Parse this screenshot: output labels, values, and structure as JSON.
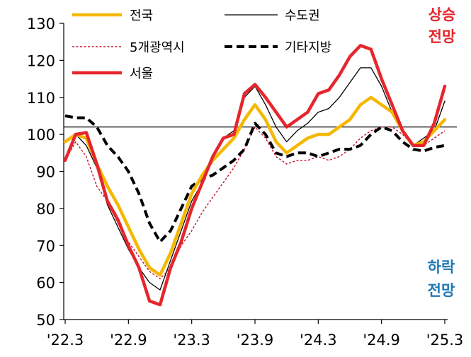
{
  "chart_data": {
    "type": "line",
    "title": "",
    "xlabel": "",
    "ylabel": "",
    "ylim": [
      50,
      130
    ],
    "yticks": [
      50,
      60,
      70,
      80,
      90,
      100,
      110,
      120,
      130
    ],
    "reference_line": 102,
    "x_tick_labels": [
      "'22.3",
      "'22.9",
      "'23.3",
      "'23.9",
      "'24.3",
      "'24.9",
      "'25.3"
    ],
    "x_tick_index": [
      0,
      6,
      12,
      18,
      24,
      30,
      36
    ],
    "n_points": 37,
    "annotations": {
      "upper": [
        "상승",
        "전망"
      ],
      "lower": [
        "하락",
        "전망"
      ]
    },
    "colors": {
      "upper": "#e5262c",
      "lower": "#1f78b4",
      "axis": "#000000"
    },
    "legend": [
      {
        "name": "전국",
        "series": 0
      },
      {
        "name": "수도권",
        "series": 1
      },
      {
        "name": "5개광역시",
        "series": 2
      },
      {
        "name": "기타지방",
        "series": 3
      },
      {
        "name": "서울",
        "series": 4
      }
    ],
    "series": [
      {
        "name": "전국",
        "color": "#f5b800",
        "style": "solid-thick",
        "values": [
          98,
          100,
          99,
          92,
          86,
          81,
          75,
          69,
          64,
          62,
          68,
          76,
          84,
          89,
          93,
          96,
          99,
          104,
          108,
          104,
          98,
          95,
          97,
          99,
          100,
          100,
          102,
          104,
          108,
          110,
          108,
          106,
          101,
          97,
          98,
          101,
          104
        ]
      },
      {
        "name": "수도권",
        "color": "#000000",
        "style": "solid-thin",
        "values": [
          93,
          100,
          97,
          91,
          81,
          75,
          69,
          64,
          60,
          58,
          66,
          74,
          82,
          87,
          94,
          99,
          101,
          110,
          113,
          108,
          102,
          98,
          101,
          103,
          106,
          107,
          110,
          114,
          118,
          118,
          113,
          106,
          101,
          97,
          99,
          101,
          109
        ]
      },
      {
        "name": "5개광역시",
        "color": "#c8102e",
        "style": "dotted",
        "values": [
          93,
          98,
          94,
          86,
          82,
          76,
          71,
          67,
          63,
          61,
          64,
          70,
          74,
          79,
          83,
          87,
          91,
          96,
          102,
          99,
          94,
          92,
          93,
          93,
          94,
          93,
          94,
          96,
          99,
          101,
          102,
          102,
          100,
          97,
          97,
          99,
          101
        ]
      },
      {
        "name": "기타지방",
        "color": "#000000",
        "style": "dashed",
        "values": [
          105,
          104.5,
          104.5,
          102,
          97,
          94,
          90,
          84,
          76,
          71,
          74,
          80,
          86,
          88,
          89,
          91,
          93,
          96,
          103,
          100,
          95,
          94,
          95,
          95,
          94,
          95,
          96,
          96,
          97,
          100,
          102,
          101,
          98,
          96,
          95.5,
          96.5,
          97
        ]
      },
      {
        "name": "서울",
        "color": "#e5262c",
        "style": "solid-thick",
        "values": [
          93,
          100,
          100.5,
          92,
          82,
          77,
          70,
          64,
          55,
          54,
          64,
          71,
          80,
          87,
          94,
          99,
          100,
          111,
          113.5,
          110,
          106,
          102,
          104,
          106,
          111,
          112,
          116,
          121,
          124,
          123,
          115,
          108,
          101,
          97,
          97,
          103,
          113
        ]
      }
    ]
  }
}
